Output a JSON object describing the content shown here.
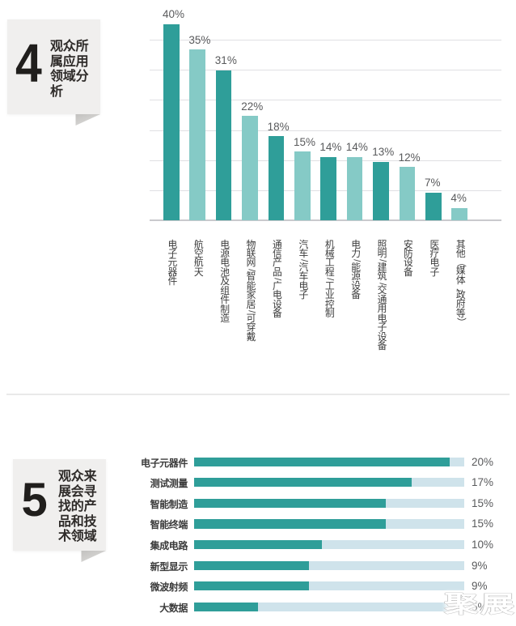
{
  "colors": {
    "bar_dark_teal": "#2f9e99",
    "bar_light_teal": "#85cac6",
    "track_light_blue": "#cfe3eb",
    "grid_line": "#e0e0e3",
    "axis_line": "#c9c9cd",
    "value_label_grey": "#595a5c",
    "text_dark": "#3c3c3c",
    "badge_background": "#f0efee",
    "badge_tail_grey": "#c6c5c3",
    "page_background": "#ffffff"
  },
  "section4": {
    "badge_number": "4",
    "title_lines": [
      "观众所",
      "属应用",
      "领域分",
      "析"
    ],
    "title_text": "观众所属应用领域分析"
  },
  "section5": {
    "badge_number": "5",
    "title_lines": [
      "观众来",
      "展会寻",
      "找的产",
      "品和技",
      "术领域"
    ],
    "title_text": "观众来展会寻找的产品和技术领域"
  },
  "chart_data": [
    {
      "section": "4",
      "type": "bar",
      "orientation": "vertical",
      "title": "观众所属应用领域分析",
      "unit": "%",
      "categories": [
        "电子元器件",
        "航空航天",
        "电源电池及组件制造",
        "物联网/智能家居/可穿戴",
        "通信产品/广电设备",
        "汽车/汽车电子",
        "机械工程/工业控制",
        "电力/能源设备",
        "照明/建筑/交通用电子设备",
        "安防设备",
        "医疗电子",
        "其他（媒体、政府等）"
      ],
      "values": [
        40,
        35,
        31,
        22,
        18,
        15,
        14,
        14,
        13,
        12,
        7,
        4
      ],
      "value_labels": [
        "40%",
        "35%",
        "31%",
        "22%",
        "18%",
        "15%",
        "14%",
        "14%",
        "13%",
        "12%",
        "7%",
        "4%"
      ],
      "bar_color_pattern": [
        "dark_teal",
        "light_teal"
      ],
      "grid": true,
      "gridline_count": 7,
      "xlabel": "",
      "ylabel": "",
      "legend": false
    },
    {
      "section": "5",
      "type": "bar",
      "orientation": "horizontal",
      "title": "观众来展会寻找的产品和技术领域",
      "unit": "%",
      "categories": [
        "电子元器件",
        "测试测量",
        "智能制造",
        "智能终端",
        "集成电路",
        "新型显示",
        "微波射频",
        "大数据"
      ],
      "values": [
        20,
        17,
        15,
        15,
        10,
        9,
        9,
        5
      ],
      "value_labels": [
        "20%",
        "17%",
        "15%",
        "15%",
        "10%",
        "9%",
        "9%",
        "5%"
      ],
      "track_full_scale": 21.1,
      "grid": false,
      "xlabel": "",
      "ylabel": "",
      "legend": false
    }
  ],
  "watermark": {
    "text": "聚展"
  }
}
